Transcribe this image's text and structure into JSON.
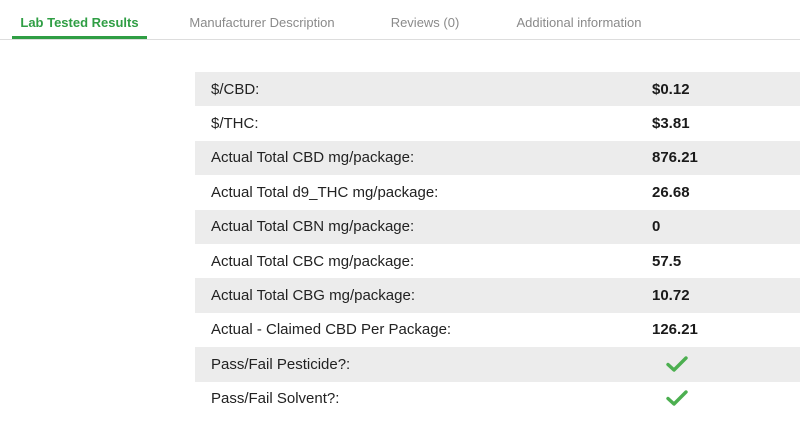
{
  "tabs": [
    {
      "label": "Lab Tested Results",
      "active": true
    },
    {
      "label": "Manufacturer Description",
      "active": false
    },
    {
      "label": "Reviews (0)",
      "active": false
    },
    {
      "label": "Additional information",
      "active": false
    }
  ],
  "results": [
    {
      "label": "$/CBD:",
      "value": "$0.12"
    },
    {
      "label": "$/THC:",
      "value": "$3.81"
    },
    {
      "label": "Actual Total CBD mg/package:",
      "value": "876.21"
    },
    {
      "label": "Actual Total d9_THC mg/package:",
      "value": "26.68"
    },
    {
      "label": "Actual Total CBN mg/package:",
      "value": "0"
    },
    {
      "label": "Actual Total CBC mg/package:",
      "value": "57.5"
    },
    {
      "label": "Actual Total CBG mg/package:",
      "value": "10.72"
    },
    {
      "label": "Actual - Claimed CBD Per Package:",
      "value": "126.21"
    },
    {
      "label": "Pass/Fail Pesticide?:",
      "value_icon": "checkmark-icon"
    },
    {
      "label": "Pass/Fail Solvent?:",
      "value_icon": "checkmark-icon"
    }
  ],
  "colors": {
    "accent": "#2f9e44",
    "check": "#4caf50",
    "row_shade": "#ececec",
    "tab_inactive": "#8a8a8a"
  }
}
